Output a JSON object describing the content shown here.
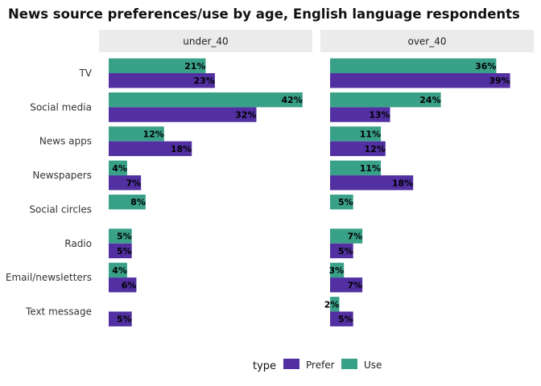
{
  "chart_data": {
    "type": "bar",
    "orientation": "horizontal",
    "title": "News source preferences/use by age, English language respondents",
    "facets": [
      "under_40",
      "over_40"
    ],
    "categories": [
      "TV",
      "Social media",
      "News apps",
      "Newspapers",
      "Social circles",
      "Radio",
      "Email/newsletters",
      "Text message"
    ],
    "series": [
      {
        "name": "Use",
        "color": "#3aa189",
        "values": {
          "under_40": [
            21,
            42,
            12,
            4,
            8,
            5,
            4,
            null
          ],
          "over_40": [
            36,
            24,
            11,
            11,
            5,
            7,
            3,
            2
          ]
        }
      },
      {
        "name": "Prefer",
        "color": "#5230a2",
        "values": {
          "under_40": [
            23,
            32,
            18,
            7,
            null,
            5,
            6,
            5
          ],
          "over_40": [
            39,
            13,
            12,
            18,
            null,
            5,
            7,
            5
          ]
        }
      }
    ],
    "value_suffix": "%",
    "xlim": [
      0,
      44
    ],
    "legend": {
      "title": "type",
      "position": "bottom",
      "entries": [
        {
          "name": "Prefer",
          "color": "#5230a2"
        },
        {
          "name": "Use",
          "color": "#3aa189"
        }
      ]
    },
    "strip_color": "#ebebeb",
    "grid": false
  }
}
